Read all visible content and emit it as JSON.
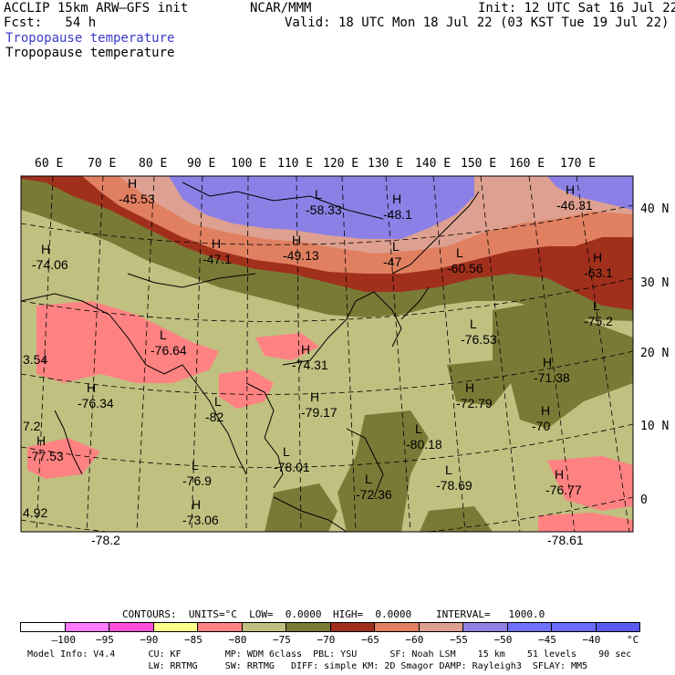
{
  "header": {
    "model": "ACCLIP 15km ARW–GFS init",
    "org": "NCAR/MMM",
    "init": "Init: 12 UTC Sat 16 Jul 22",
    "fcst": "Fcst:   54 h",
    "valid": "Valid: 18 UTC Mon 18 Jul 22 (03 KST Tue 19 Jul 22)",
    "field1": "Tropopause temperature",
    "field2": "Tropopause temperature"
  },
  "lon_labels": [
    "60 E",
    "70 E",
    "80 E",
    "90 E",
    "100 E",
    "110 E",
    "120 E",
    "130 E",
    "140 E",
    "150 E",
    "160 E",
    "170 E"
  ],
  "lat_labels": [
    "40 N",
    "30 N",
    "20 N",
    "10 N",
    "0"
  ],
  "markers": [
    {
      "sym": "H",
      "value": "-45.53"
    },
    {
      "sym": "L",
      "value": "-58.33"
    },
    {
      "sym": "H",
      "value": "-48.1"
    },
    {
      "sym": "H",
      "value": "-46.31"
    },
    {
      "sym": "H",
      "value": "-74.06"
    },
    {
      "sym": "H",
      "value": "-47.1"
    },
    {
      "sym": "H",
      "value": "-49.13"
    },
    {
      "sym": "L",
      "value": "-47"
    },
    {
      "sym": "L",
      "value": "-60.56"
    },
    {
      "sym": "H",
      "value": "-63.1"
    },
    {
      "sym": "L",
      "value": "-75.2"
    },
    {
      "sym": "L",
      "value": "-76.53"
    },
    {
      "sym": "L",
      "value": "-76.64"
    },
    {
      "sym": "",
      "value": "3.54"
    },
    {
      "sym": "H",
      "value": "-74.31"
    },
    {
      "sym": "H",
      "value": "-71.38"
    },
    {
      "sym": "H",
      "value": "-76.34"
    },
    {
      "sym": "L",
      "value": "-82"
    },
    {
      "sym": "H",
      "value": "-79.17"
    },
    {
      "sym": "H",
      "value": "-72.79"
    },
    {
      "sym": "H",
      "value": "-70"
    },
    {
      "sym": "",
      "value": "7.2"
    },
    {
      "sym": "L",
      "value": "-80.18"
    },
    {
      "sym": "H",
      "value": "-77.53"
    },
    {
      "sym": "L",
      "value": "-78.01"
    },
    {
      "sym": "L",
      "value": "-76.9"
    },
    {
      "sym": "L",
      "value": "-78.69"
    },
    {
      "sym": "H",
      "value": "-76.77"
    },
    {
      "sym": "L",
      "value": "-72.36"
    },
    {
      "sym": "",
      "value": "4.92"
    },
    {
      "sym": "H",
      "value": "-73.06"
    },
    {
      "sym": "",
      "value": "-78.2"
    },
    {
      "sym": "",
      "value": "-78.61"
    }
  ],
  "contour_line": {
    "contours": "CONTOURS:  UNITS=°C  LOW=  0.0000",
    "high": "HIGH=  0.0000",
    "interval": "INTERVAL=   1000.0"
  },
  "colorbar": {
    "colors": [
      "#ffffff",
      "#ff7bff",
      "#ff4fd8",
      "#ffff8c",
      "#ff8282",
      "#c0c080",
      "#7a7a37",
      "#a0301c",
      "#e08060",
      "#dea090",
      "#9080e0",
      "#7070ff",
      "#6a6aff",
      "#5a5af0"
    ],
    "labels": [
      "–100",
      "−95",
      "−90",
      "−85",
      "−80",
      "−75",
      "−70",
      "−65",
      "−60",
      "−55",
      "−50",
      "−45",
      "−40",
      "°C"
    ]
  },
  "footer": {
    "line1": "Model Info: V4.4      CU: KF        MP: WDM 6class  PBL: YSU      SF: Noah LSM    15 km    51 levels    90 sec",
    "line2": "                      LW: RRTMG     SW: RRTMG   DIFF: simple KM: 2D Smagor DAMP: Rayleigh3  SFLAY: MM5"
  }
}
